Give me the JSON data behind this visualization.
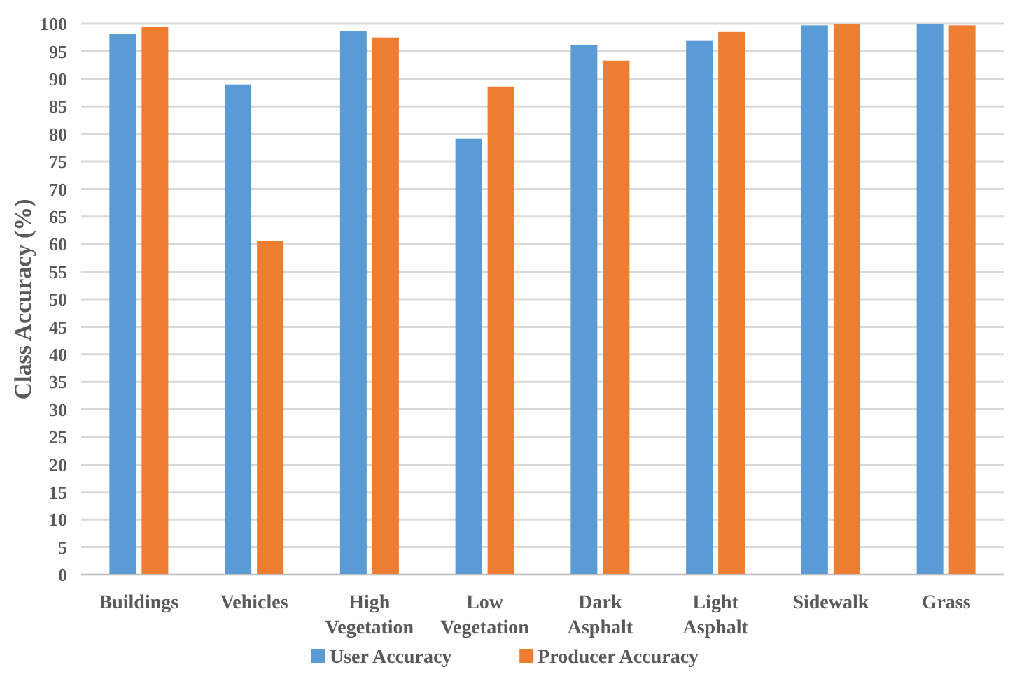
{
  "chart_data": {
    "type": "bar",
    "ylabel": "Class Accuracy  (%)",
    "categories": [
      "Buildings",
      "Vehicles",
      "High Vegetation",
      "Low Vegetation",
      "Dark Asphalt",
      "Light Asphalt",
      "Sidewalk",
      "Grass"
    ],
    "series": [
      {
        "name": "User Accuracy",
        "color": "#5b9bd5",
        "values": [
          98.2,
          89,
          98.7,
          79.1,
          96.2,
          97,
          99.7,
          100
        ]
      },
      {
        "name": "Producer Accuracy",
        "color": "#ed7d31",
        "values": [
          99.5,
          60.6,
          97.5,
          88.6,
          93.3,
          98.5,
          100,
          99.7
        ]
      }
    ],
    "ylim": [
      0,
      100
    ],
    "yticks": [
      0,
      5,
      10,
      15,
      20,
      25,
      30,
      35,
      40,
      45,
      50,
      55,
      60,
      65,
      70,
      75,
      80,
      85,
      90,
      95,
      100
    ],
    "grid": "y",
    "legend": "bottom"
  }
}
